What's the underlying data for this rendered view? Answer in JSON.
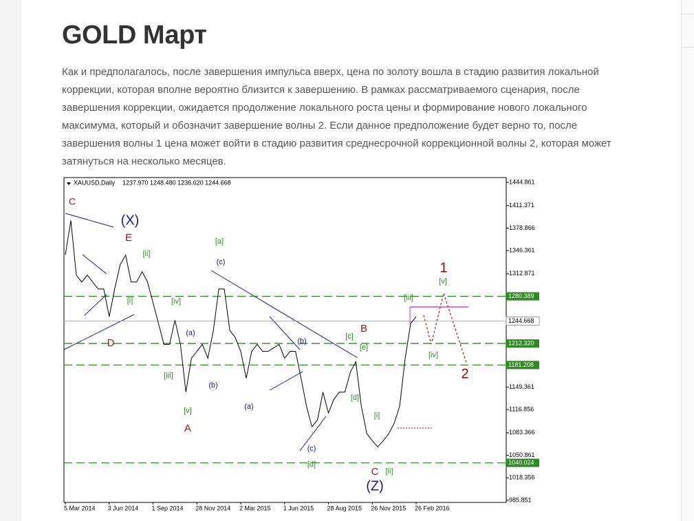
{
  "header": {
    "title": "GOLD Март"
  },
  "body": {
    "lines": [
      "Как и предполагалось, после завершения импульса вверх, цена по золоту вошла в стадию развития локальной",
      "коррекции, которая вполне вероятно близится к завершению. В рамках рассматриваемого сценария, после",
      "завершения коррекции, ожидается продолжение локального роста цены и формирование нового локального",
      "максимума, который и обозначит завершение волны 2. Если данное предположение будет верно то, после",
      "завершения волны 1 цена может войти в стадию развития среднесрочной коррекционной волны 2, которая может",
      "затянуться на несколько месяцев."
    ]
  },
  "chart_data": {
    "type": "line",
    "title": "XAUUSD,Daily",
    "subtitle": "1237.970 1248.480 1236.620 1244.668",
    "categories": [
      "5 Mar 2014",
      null,
      null,
      null,
      null,
      null,
      null,
      null,
      "3 Jun 2014",
      null,
      null,
      null,
      null,
      null,
      null,
      null,
      "1 Sep 2014",
      null,
      null,
      null,
      null,
      null,
      null,
      null,
      "28 Nov 2014",
      null,
      null,
      null,
      null,
      null,
      null,
      null,
      "2 Mar 2015",
      null,
      null,
      null,
      null,
      null,
      null,
      null,
      "1 Jun 2015",
      null,
      null,
      null,
      null,
      null,
      null,
      null,
      "28 Aug 2015",
      null,
      null,
      null,
      null,
      null,
      null,
      null,
      "26 Nov 2015",
      null,
      null,
      null,
      null,
      null,
      null,
      null,
      "26 Feb 2016"
    ],
    "series": [
      {
        "name": "XAUUSD",
        "color": "#000000",
        "values": [
          1340,
          1390,
          1311,
          1301,
          1311,
          1301,
          1291,
          1291,
          1251,
          1291,
          1326,
          1340,
          1301,
          1301,
          1316,
          1301,
          1271,
          1241,
          1211,
          1211,
          1246,
          1211,
          1142,
          1191,
          1201,
          1211,
          1191,
          1231,
          1291,
          1291,
          1231,
          1221,
          1201,
          1162,
          1201,
          1211,
          1201,
          1201,
          1206,
          1211,
          1191,
          1201,
          1201,
          1162,
          1122,
          1092,
          1102,
          1142,
          1112,
          1132,
          1142,
          1142,
          1171,
          1186,
          1122,
          1082,
          1072,
          1063,
          1072,
          1082,
          1097,
          1122,
          1191,
          1241,
          1251
        ]
      }
    ],
    "ylim": [
      982.9,
      1451.8
    ],
    "yticks": [
      1444.861,
      1411.371,
      1378.866,
      1346.361,
      1312.871,
      1149.361,
      1116.856,
      1083.366,
      1050.861,
      1018.356,
      985.851
    ],
    "levels": [
      {
        "value": 1280.389,
        "color": "#2e8b22",
        "style": "dashed"
      },
      {
        "value": 1244.668,
        "color": "#b0b0b0",
        "style": "solid"
      },
      {
        "value": 1212.32,
        "label": "1212.320",
        "color": "#2e8b22",
        "style": "dashed"
      },
      {
        "value": 1181.208,
        "color": "#2e8b22",
        "style": "dashed"
      },
      {
        "value": 1040.024,
        "color": "#2e8b22",
        "style": "dashed"
      }
    ],
    "annotations": [
      {
        "text": "C",
        "color": "#8b1a1a"
      },
      {
        "text": "(X)",
        "color": "#1a1a8b"
      },
      {
        "text": "E",
        "color": "#8b1a1a"
      },
      {
        "text": "[a]",
        "color": "#2e8b22"
      },
      {
        "text": "[ii]",
        "color": "#2e8b22"
      },
      {
        "text": "(c)",
        "color": "#1a1a8b"
      },
      {
        "text": "1",
        "color": "#a00000"
      },
      {
        "text": "[v]",
        "color": "#2e8b22"
      },
      {
        "text": "[i]",
        "color": "#2e8b22"
      },
      {
        "text": "[iv]",
        "color": "#2e8b22"
      },
      {
        "text": "[iii]",
        "color": "#2e8b22"
      },
      {
        "text": "B",
        "color": "#8b1a1a"
      },
      {
        "text": "(a)",
        "color": "#1a1a8b"
      },
      {
        "text": "[c]",
        "color": "#2e8b22"
      },
      {
        "text": "(b)",
        "color": "#1a1a8b"
      },
      {
        "text": "D",
        "color": "#8b1a1a"
      },
      {
        "text": "[e]",
        "color": "#2e8b22"
      },
      {
        "text": "[iv]",
        "color": "#2e8b22"
      },
      {
        "text": "2",
        "color": "#a00000"
      },
      {
        "text": "[iii]",
        "color": "#2e8b22"
      },
      {
        "text": "(b)",
        "color": "#1a1a8b"
      },
      {
        "text": "[d]",
        "color": "#2e8b22"
      },
      {
        "text": "(a)",
        "color": "#1a1a8b"
      },
      {
        "text": "[v]",
        "color": "#2e8b22"
      },
      {
        "text": "[i]",
        "color": "#2e8b22"
      },
      {
        "text": "A",
        "color": "#8b1a1a"
      },
      {
        "text": "(c)",
        "color": "#1a1a8b"
      },
      {
        "text": "[d]",
        "color": "#2e8b22"
      },
      {
        "text": "[ii]",
        "color": "#2e8b22"
      },
      {
        "text": "C",
        "color": "#8b1a1a"
      },
      {
        "text": "(Z)",
        "color": "#1a1a8b"
      }
    ]
  }
}
